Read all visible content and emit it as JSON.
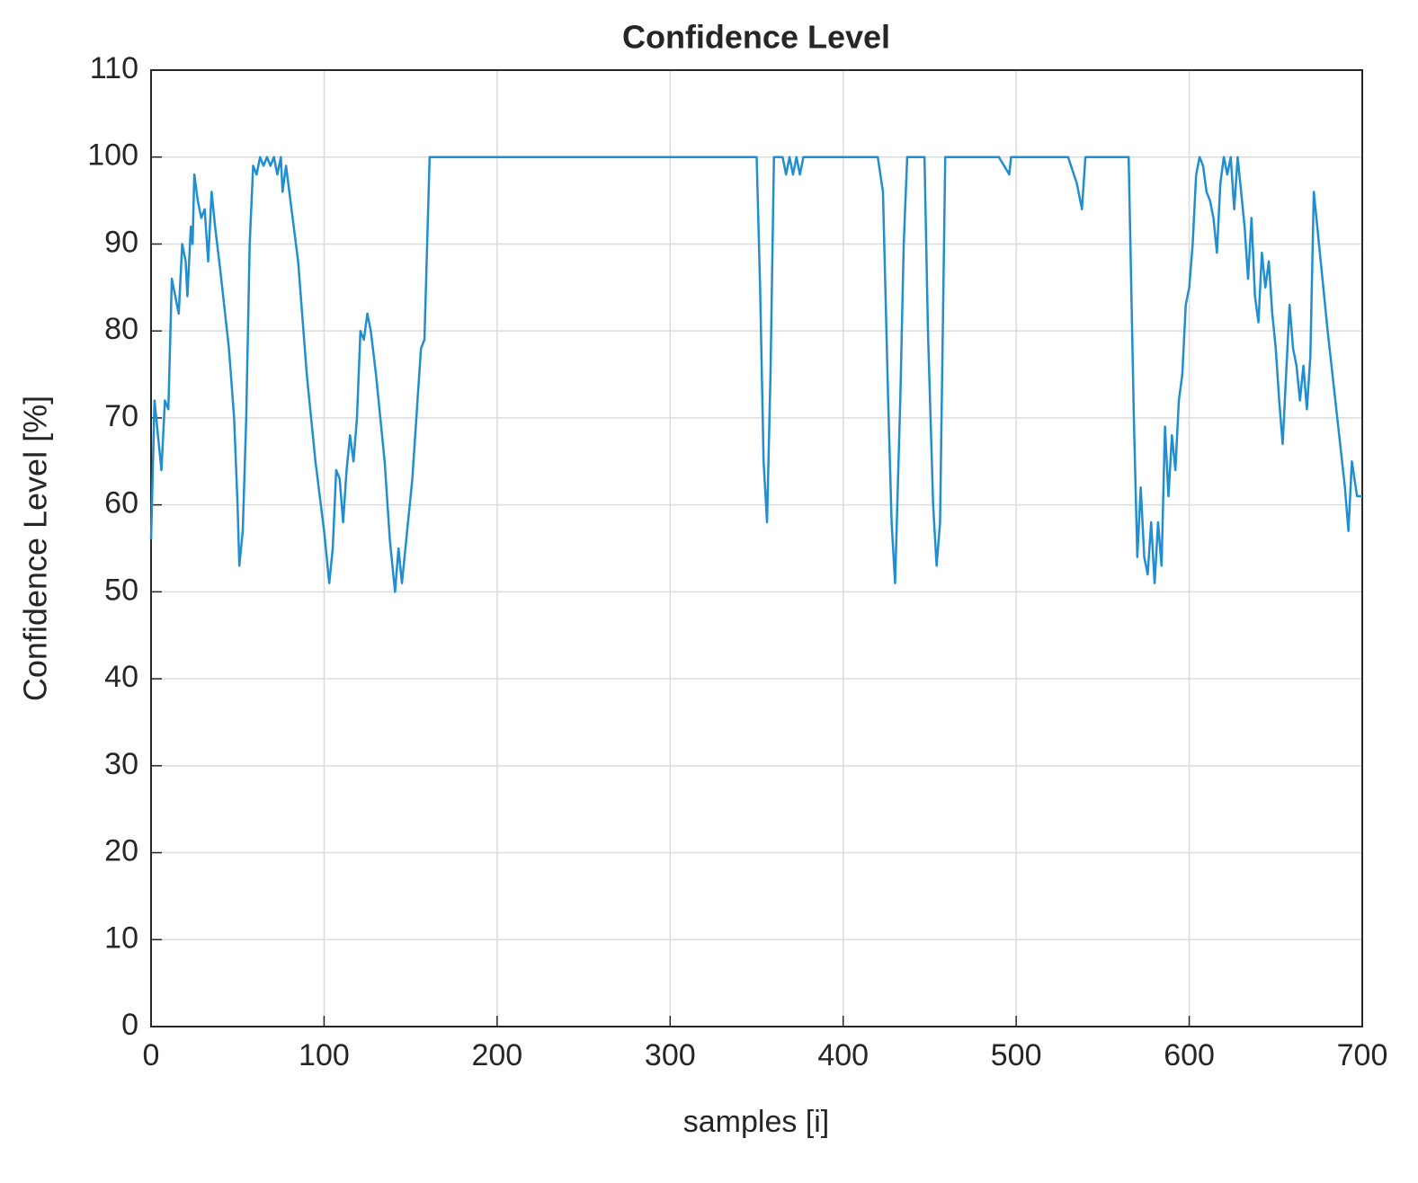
{
  "chart_data": {
    "type": "line",
    "title": "Confidence Level",
    "xlabel": "samples [i]",
    "ylabel": "Confidence Level [%]",
    "xlim": [
      0,
      700
    ],
    "xticks": [
      0,
      100,
      200,
      300,
      400,
      500,
      600,
      700
    ],
    "ylim": [
      0,
      110
    ],
    "yticks": [
      0,
      10,
      20,
      30,
      40,
      50,
      60,
      70,
      80,
      90,
      100,
      110
    ],
    "grid": true,
    "x": [
      0,
      2,
      4,
      6,
      8,
      10,
      12,
      14,
      16,
      18,
      20,
      21,
      23,
      24,
      25,
      27,
      29,
      31,
      33,
      35,
      37,
      40,
      45,
      48,
      50,
      51,
      53,
      55,
      57,
      59,
      61,
      63,
      65,
      67,
      69,
      71,
      73,
      75,
      76,
      78,
      85,
      90,
      95,
      100,
      103,
      105,
      107,
      109,
      111,
      113,
      115,
      117,
      119,
      121,
      123,
      125,
      127,
      130,
      135,
      138,
      141,
      143,
      145,
      148,
      151,
      154,
      156,
      158,
      161,
      200,
      300,
      340,
      350,
      352,
      354,
      356,
      358,
      360,
      365,
      367,
      369,
      371,
      373,
      375,
      377,
      380,
      400,
      420,
      423,
      426,
      428,
      430,
      433,
      435,
      437,
      440,
      447,
      449,
      452,
      454,
      456,
      459,
      490,
      496,
      497,
      530,
      535,
      538,
      540,
      565,
      568,
      570,
      572,
      574,
      576,
      578,
      580,
      582,
      584,
      586,
      588,
      590,
      592,
      594,
      596,
      598,
      600,
      602,
      604,
      606,
      608,
      610,
      612,
      614,
      616,
      618,
      620,
      622,
      624,
      626,
      628,
      630,
      632,
      634,
      636,
      638,
      640,
      642,
      644,
      646,
      648,
      650,
      652,
      654,
      656,
      658,
      660,
      662,
      664,
      666,
      668,
      670,
      672,
      675,
      680,
      685,
      690,
      692,
      694,
      697,
      700
    ],
    "series": [
      {
        "name": "Confidence Level",
        "color": "#1f8fd1",
        "values": [
          56,
          72,
          68,
          64,
          72,
          71,
          86,
          84,
          82,
          90,
          88,
          84,
          92,
          90,
          98,
          95,
          93,
          94,
          88,
          96,
          92,
          87,
          78,
          70,
          60,
          53,
          57,
          70,
          90,
          99,
          98,
          100,
          99,
          100,
          99,
          100,
          98,
          100,
          96,
          99,
          88,
          75,
          65,
          57,
          51,
          55,
          64,
          63,
          58,
          64,
          68,
          65,
          70,
          80,
          79,
          82,
          80,
          75,
          65,
          56,
          50,
          55,
          51,
          57,
          63,
          72,
          78,
          79,
          100,
          100,
          100,
          100,
          100,
          85,
          65,
          58,
          75,
          100,
          100,
          98,
          100,
          98,
          100,
          98,
          100,
          100,
          100,
          100,
          96,
          72,
          58,
          51,
          72,
          90,
          100,
          100,
          100,
          80,
          60,
          53,
          58,
          100,
          100,
          98,
          100,
          100,
          97,
          94,
          100,
          100,
          70,
          54,
          62,
          54,
          52,
          58,
          51,
          58,
          53,
          69,
          61,
          68,
          64,
          72,
          75,
          83,
          85,
          90,
          98,
          100,
          99,
          96,
          95,
          93,
          89,
          97,
          100,
          98,
          100,
          94,
          100,
          96,
          92,
          86,
          93,
          84,
          81,
          89,
          85,
          88,
          82,
          78,
          72,
          67,
          75,
          83,
          78,
          76,
          72,
          76,
          71,
          77,
          96,
          90,
          80,
          71,
          62,
          57,
          65,
          61,
          61
        ]
      }
    ]
  }
}
